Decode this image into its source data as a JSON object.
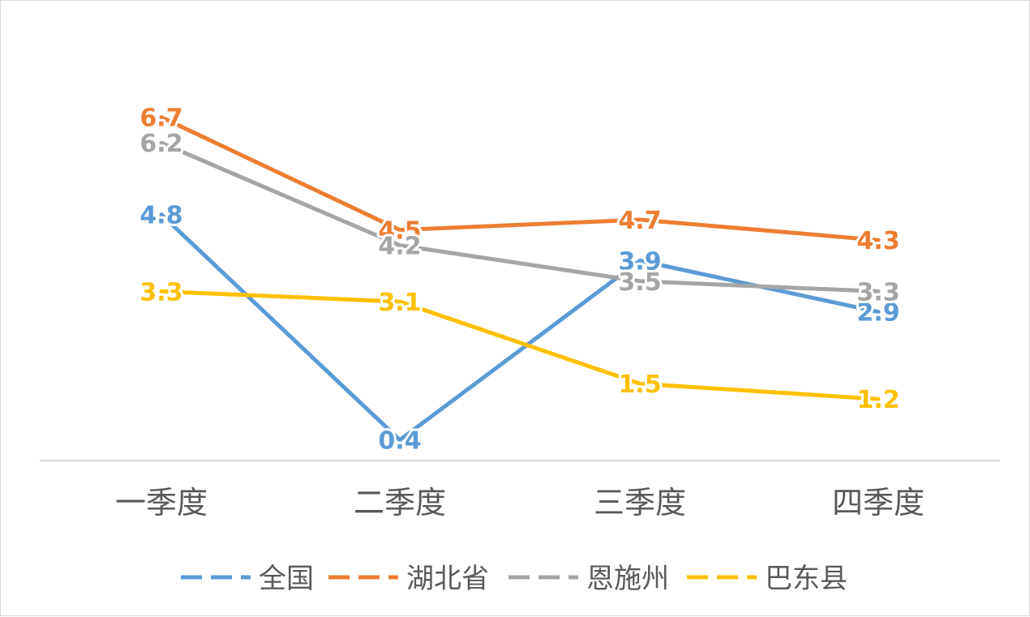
{
  "chart_data": {
    "type": "line",
    "categories": [
      "一季度",
      "二季度",
      "三季度",
      "四季度"
    ],
    "series": [
      {
        "name": "全国",
        "values": [
          4.8,
          0.4,
          3.9,
          2.9
        ],
        "color": "#5B9BD5"
      },
      {
        "name": "湖北省",
        "values": [
          6.7,
          4.5,
          4.7,
          4.3
        ],
        "color": "#ED7D31"
      },
      {
        "name": "恩施州",
        "values": [
          6.2,
          4.2,
          3.5,
          3.3
        ],
        "color": "#A5A5A5"
      },
      {
        "name": "巴东县",
        "values": [
          3.3,
          3.1,
          1.5,
          1.2
        ],
        "color": "#FFC000"
      }
    ],
    "ylim": [
      0,
      7.5
    ],
    "data_labels": true,
    "grid": false,
    "legend": "bottom",
    "line_style": "solid",
    "legend_line_style": "dashed"
  }
}
